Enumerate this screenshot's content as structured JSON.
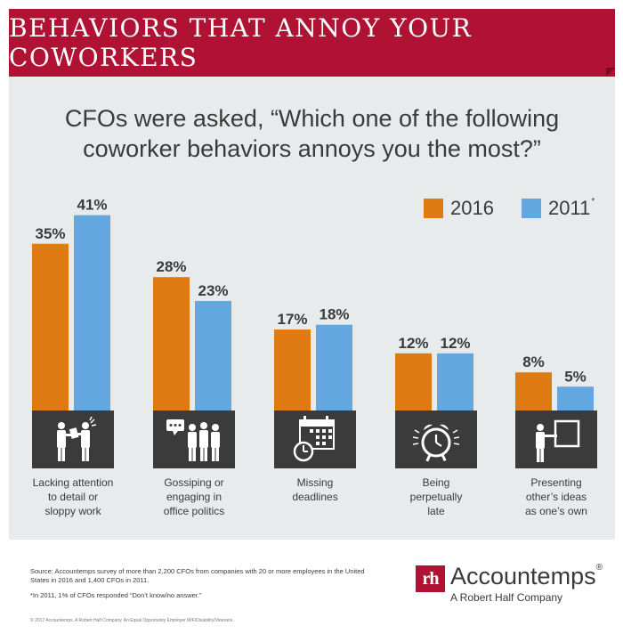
{
  "banner": {
    "title": "BEHAVIORS THAT ANNOY YOUR COWORKERS"
  },
  "question": {
    "line1": "CFOs were asked, “Which one of the following",
    "line2": "coworker behaviors annoys you the most?”"
  },
  "legend": [
    {
      "label": "2016",
      "color": "#e07a12",
      "marker": ""
    },
    {
      "label": "2011",
      "color": "#62a7e0",
      "marker": "*"
    }
  ],
  "chart_data": {
    "type": "bar",
    "categories": [
      "Lacking attention to detail or sloppy work",
      "Gossiping or engaging in office politics",
      "Missing deadlines",
      "Being perpetually late",
      "Presenting other’s ideas as one’s own"
    ],
    "category_lines": [
      [
        "Lacking attention",
        "to detail or",
        "sloppy work"
      ],
      [
        "Gossiping or",
        "engaging in",
        "office politics"
      ],
      [
        "Missing",
        "deadlines"
      ],
      [
        "Being",
        "perpetually",
        "late"
      ],
      [
        "Presenting",
        "other’s ideas",
        "as one’s own"
      ]
    ],
    "series": [
      {
        "name": "2016",
        "values": [
          35,
          28,
          17,
          12,
          8
        ],
        "color": "#e07a12"
      },
      {
        "name": "2011",
        "values": [
          41,
          23,
          18,
          12,
          5
        ],
        "color": "#62a7e0"
      }
    ],
    "value_labels": [
      [
        "35%",
        "28%",
        "17%",
        "12%",
        "8%"
      ],
      [
        "41%",
        "23%",
        "18%",
        "12%",
        "5%"
      ]
    ],
    "unit": "%",
    "grid": false,
    "legend_position": "top-right"
  },
  "icons": [
    "discussion-icon",
    "gossip-icon",
    "calendar-clock-icon",
    "alarm-clock-icon",
    "presentation-icon"
  ],
  "footer": {
    "source": "Source: Accountemps survey of more than 2,200 CFOs from companies with 20 or more employees in the United States in 2016 and 1,400 CFOs in 2011.",
    "footnote": "*In 2011, 1% of CFOs responded “Don’t know/no answer.”",
    "copyright": "© 2017 Accountemps. A Robert Half Company. An Equal Opportunity Employer M/F/Disability/Veterans.",
    "logo_mark": "rh",
    "brand": "Accountemps",
    "brand_mark": "®",
    "brand_sub": "A Robert Half Company"
  }
}
